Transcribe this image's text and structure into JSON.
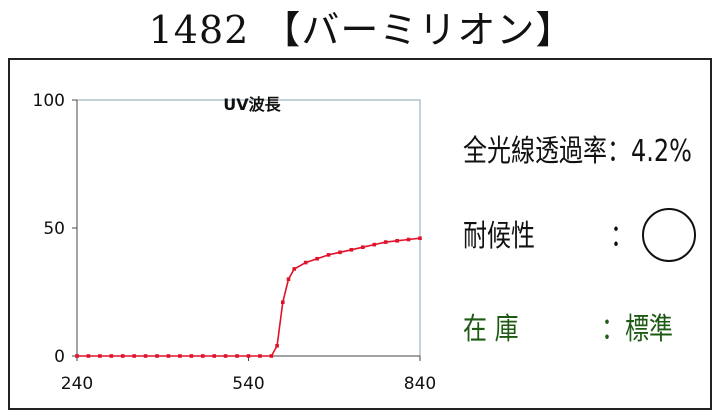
{
  "header": {
    "title": "1482 【バーミリオン】"
  },
  "info": {
    "transmittance_label": "全光線透過率",
    "transmittance_value": "：4.2%",
    "durability_label": "耐候性",
    "durability_colon": "：",
    "durability_symbol": "circle",
    "stock_label": "在 庫",
    "stock_value": "：標準"
  },
  "colors": {
    "series": "#e0122b",
    "stock_text": "#1e5a14",
    "plot_border": "#8aa4b4"
  },
  "chart_data": {
    "type": "line",
    "title": "UV波長",
    "xlabel": "",
    "ylabel": "",
    "xlim": [
      240,
      840
    ],
    "ylim": [
      0,
      100
    ],
    "xticks": [
      240,
      540,
      840
    ],
    "yticks": [
      0,
      50,
      100
    ],
    "grid": false,
    "series": [
      {
        "color": "#e0122b",
        "x": [
          240,
          260,
          280,
          300,
          320,
          340,
          360,
          380,
          400,
          420,
          440,
          460,
          480,
          500,
          520,
          540,
          560,
          580,
          590,
          600,
          610,
          620,
          640,
          660,
          680,
          700,
          720,
          740,
          760,
          780,
          800,
          820,
          840
        ],
        "y": [
          0,
          0,
          0,
          0,
          0,
          0,
          0,
          0,
          0,
          0,
          0,
          0,
          0,
          0,
          0,
          0,
          0,
          0,
          4,
          21,
          30,
          34,
          36.5,
          38,
          39.5,
          40.5,
          41.5,
          42.5,
          43.5,
          44.5,
          45,
          45.5,
          46
        ]
      }
    ]
  }
}
